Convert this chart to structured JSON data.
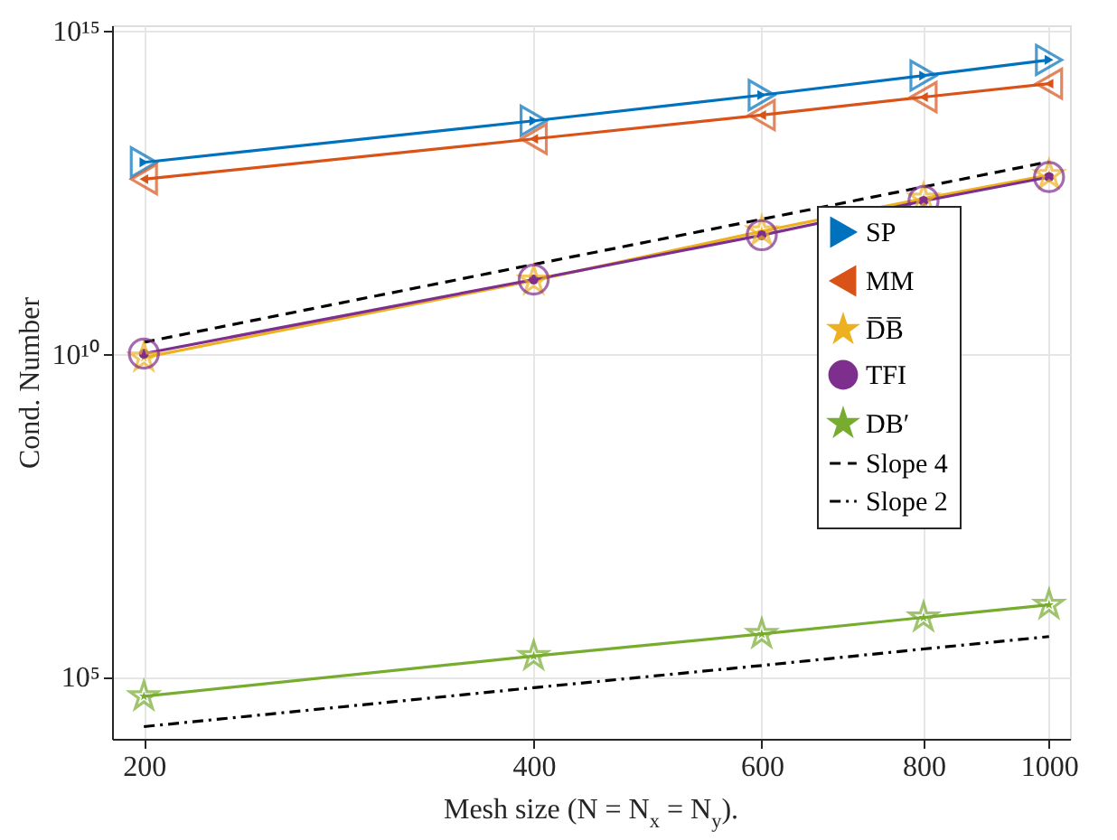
{
  "chart_data": {
    "type": "line",
    "xlabel": "Mesh size (N = N$_{x}$ = N$_{y}$).",
    "ylabel": "Cond. Number",
    "x": [
      200,
      400,
      600,
      800,
      1000
    ],
    "log": "xy",
    "grid": true,
    "legend": "right",
    "xlim": [
      189,
      1038
    ],
    "xticks": [
      200,
      400,
      600,
      800,
      1000
    ],
    "ylim": [
      11000.0,
      1200000000000000.0
    ],
    "yticks": [
      {
        "value": 100000.0,
        "label": "10⁵"
      },
      {
        "value": 10000000000.0,
        "label": "10¹⁰"
      },
      {
        "value": 1000000000000000.0,
        "label": "10¹⁵"
      }
    ],
    "series": [
      {
        "name": "SP",
        "color": "#0072bd",
        "marker": "triangle-right",
        "line_style": "solid",
        "values": [
          9100000000000.0,
          40000000000000.0,
          100000000000000.0,
          200000000000000.0,
          350000000000000.0
        ]
      },
      {
        "name": "MM",
        "color": "#d95319",
        "marker": "triangle-left",
        "line_style": "solid",
        "values": [
          5000000000000.0,
          21000000000000.0,
          49000000000000.0,
          93000000000000.0,
          150000000000000.0
        ]
      },
      {
        "name": "D̅B̅",
        "color": "#edb120",
        "marker": "star",
        "line_style": "solid",
        "values": [
          8700000000.0,
          135000000000.0,
          780000000000.0,
          2500000000000.0,
          5800000000000.0
        ]
      },
      {
        "name": "TFI",
        "color": "#7e2f8e",
        "marker": "circle",
        "line_style": "solid",
        "values": [
          10000000000.0,
          140000000000.0,
          680000000000.0,
          2300000000000.0,
          5400000000000.0
        ]
      },
      {
        "name": "DB′",
        "color": "#77ac30",
        "marker": "star",
        "line_style": "solid",
        "values": [
          50000.0,
          210000.0,
          460000.0,
          830000.0,
          1300000.0
        ]
      },
      {
        "name": "Slope 4",
        "color": "#000000",
        "marker": "none",
        "line_style": "dashed",
        "values": [
          15000000000.0,
          240000000000.0,
          1200000000000.0,
          3800000000000.0,
          9300000000000.0
        ]
      },
      {
        "name": "Slope 2",
        "color": "#000000",
        "marker": "none",
        "line_style": "dashdot",
        "values": [
          17000.0,
          68000.0,
          150000.0,
          270000.0,
          420000.0
        ]
      }
    ]
  }
}
